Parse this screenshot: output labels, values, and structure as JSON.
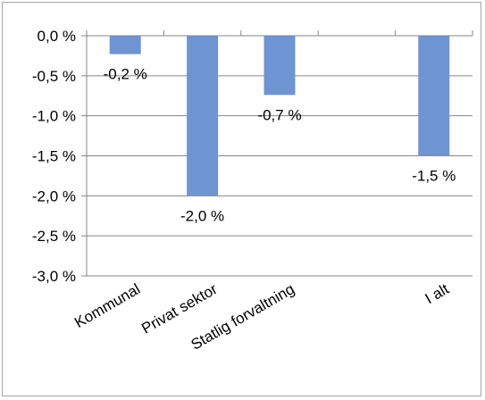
{
  "chart_data": {
    "type": "bar",
    "categories": [
      "Kommunal",
      "Privat sektor",
      "Statlig forvaltning",
      "",
      "I alt"
    ],
    "values": [
      -0.23,
      -2.0,
      -0.74,
      null,
      -1.5
    ],
    "data_labels": [
      "-0,2 %",
      "-2,0 %",
      "-0,7 %",
      "",
      "-1,5 %"
    ],
    "y_ticks": [
      "0,0 %",
      "-0,5 %",
      "-1,0 %",
      "-1,5 %",
      "-2,0 %",
      "-2,5 %",
      "-3,0 %"
    ],
    "ylim": [
      -3.0,
      0.0
    ],
    "grid": true,
    "bar_color": "#6f94d2"
  }
}
